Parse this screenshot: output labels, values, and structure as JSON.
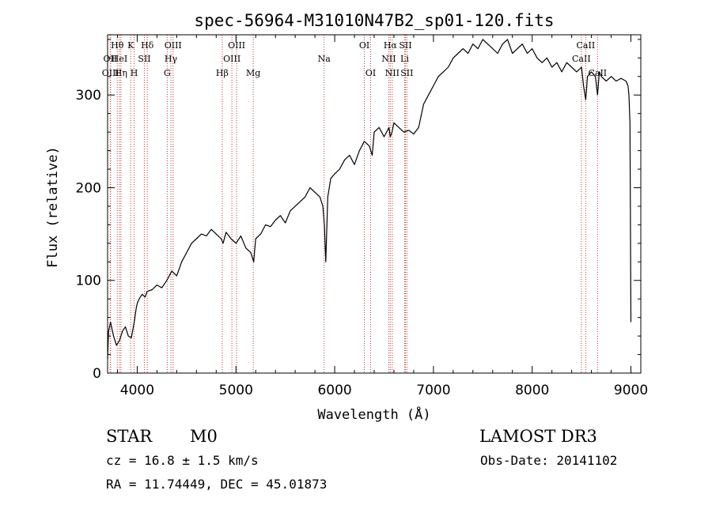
{
  "chart_data": {
    "type": "line",
    "title": "spec-56964-M31010N47B2_sp01-120.fits",
    "xlabel": "Wavelength (Å)",
    "ylabel": "Flux (relative)",
    "xlim": [
      3700,
      9100
    ],
    "ylim": [
      0,
      365
    ],
    "x_ticks": [
      4000,
      5000,
      6000,
      7000,
      8000,
      9000
    ],
    "x_tick_labels": [
      "4000",
      "5000",
      "6000",
      "7000",
      "8000",
      "9000"
    ],
    "y_ticks": [
      0,
      100,
      200,
      300
    ],
    "y_tick_labels": [
      "0",
      "100",
      "200",
      "300"
    ],
    "series": [
      {
        "name": "flux",
        "x": [
          3700,
          3710,
          3730,
          3760,
          3790,
          3820,
          3850,
          3880,
          3910,
          3940,
          3970,
          3990,
          4000,
          4020,
          4050,
          4080,
          4100,
          4150,
          4200,
          4250,
          4300,
          4350,
          4400,
          4450,
          4500,
          4550,
          4600,
          4650,
          4700,
          4750,
          4800,
          4850,
          4870,
          4900,
          4950,
          5000,
          5050,
          5100,
          5150,
          5180,
          5200,
          5250,
          5300,
          5350,
          5400,
          5450,
          5500,
          5550,
          5600,
          5650,
          5700,
          5750,
          5800,
          5850,
          5880,
          5895,
          5910,
          5930,
          5960,
          6000,
          6050,
          6100,
          6150,
          6200,
          6250,
          6300,
          6350,
          6380,
          6400,
          6450,
          6500,
          6550,
          6563,
          6580,
          6600,
          6650,
          6700,
          6750,
          6800,
          6850,
          6900,
          6950,
          7000,
          7050,
          7100,
          7150,
          7200,
          7250,
          7300,
          7350,
          7400,
          7450,
          7500,
          7550,
          7600,
          7650,
          7700,
          7750,
          7800,
          7850,
          7900,
          7950,
          8000,
          8050,
          8100,
          8150,
          8200,
          8250,
          8300,
          8350,
          8400,
          8450,
          8500,
          8520,
          8542,
          8560,
          8600,
          8640,
          8662,
          8680,
          8700,
          8750,
          8800,
          8850,
          8900,
          8950,
          8970,
          8980,
          8990,
          9000
        ],
        "y": [
          15,
          45,
          55,
          40,
          30,
          35,
          45,
          50,
          40,
          38,
          55,
          70,
          75,
          80,
          85,
          82,
          88,
          90,
          95,
          92,
          100,
          110,
          105,
          120,
          130,
          140,
          145,
          150,
          148,
          155,
          150,
          145,
          140,
          152,
          145,
          140,
          148,
          135,
          130,
          120,
          145,
          150,
          160,
          158,
          165,
          170,
          162,
          175,
          180,
          185,
          190,
          200,
          195,
          190,
          180,
          160,
          120,
          190,
          210,
          215,
          220,
          230,
          235,
          225,
          240,
          250,
          245,
          235,
          260,
          265,
          255,
          265,
          255,
          260,
          270,
          265,
          260,
          262,
          258,
          265,
          290,
          300,
          310,
          320,
          325,
          330,
          340,
          345,
          350,
          345,
          355,
          350,
          360,
          355,
          350,
          345,
          355,
          360,
          345,
          350,
          355,
          345,
          350,
          340,
          335,
          340,
          330,
          335,
          325,
          335,
          330,
          325,
          330,
          310,
          295,
          320,
          325,
          320,
          300,
          325,
          320,
          315,
          320,
          315,
          318,
          315,
          310,
          300,
          270,
          55
        ]
      }
    ],
    "line_markers": [
      {
        "label": "Hθ",
        "x": 3798,
        "row": 1
      },
      {
        "label": "OII",
        "x": 3727,
        "row": 2
      },
      {
        "label": "OIII",
        "x": 3730,
        "row": 3
      },
      {
        "label": "HeI",
        "x": 3820,
        "row": 2
      },
      {
        "label": "Hη",
        "x": 3835,
        "row": 3
      },
      {
        "label": "K",
        "x": 3934,
        "row": 1
      },
      {
        "label": "SII",
        "x": 4072,
        "row": 2
      },
      {
        "label": "H",
        "x": 3969,
        "row": 3
      },
      {
        "label": "Hδ",
        "x": 4102,
        "row": 1
      },
      {
        "label": "OIII",
        "x": 4363,
        "row": 1
      },
      {
        "label": "Hγ",
        "x": 4341,
        "row": 2
      },
      {
        "label": "G",
        "x": 4304,
        "row": 3
      },
      {
        "label": "OIII",
        "x": 5007,
        "row": 1
      },
      {
        "label": "OIII",
        "x": 4959,
        "row": 2
      },
      {
        "label": "Hβ",
        "x": 4861,
        "row": 3
      },
      {
        "label": "Mg",
        "x": 5175,
        "row": 3
      },
      {
        "label": "Na",
        "x": 5893,
        "row": 2
      },
      {
        "label": "OI",
        "x": 6300,
        "row": 1
      },
      {
        "label": "OI",
        "x": 6364,
        "row": 3
      },
      {
        "label": "Hα",
        "x": 6563,
        "row": 1
      },
      {
        "label": "SII",
        "x": 6716,
        "row": 1
      },
      {
        "label": "NII",
        "x": 6548,
        "row": 2
      },
      {
        "label": "Li",
        "x": 6708,
        "row": 2
      },
      {
        "label": "NII",
        "x": 6583,
        "row": 3
      },
      {
        "label": "SII",
        "x": 6731,
        "row": 3
      },
      {
        "label": "CaII",
        "x": 8542,
        "row": 1
      },
      {
        "label": "CaII",
        "x": 8498,
        "row": 2
      },
      {
        "label": "CaII",
        "x": 8662,
        "row": 3
      }
    ],
    "marker_color": "#c83232"
  },
  "info": {
    "class_label": "STAR",
    "subclass_label": "M0",
    "survey_label": "LAMOST DR3",
    "cz_text": "cz = 16.8 ± 1.5 km/s",
    "obs_date_text": "Obs-Date: 20141102",
    "coords_text": "RA =  11.74449, DEC =  45.01873"
  }
}
